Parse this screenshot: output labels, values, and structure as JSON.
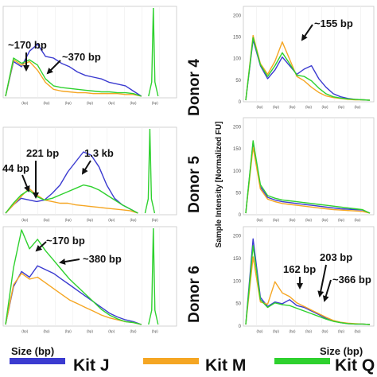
{
  "colors": {
    "kit_j": "#3b3bd0",
    "kit_m": "#f5a623",
    "kit_q": "#2ed12e"
  },
  "donors": [
    "Donor 4",
    "Donor 5",
    "Donor 6"
  ],
  "y_axis_label": "Sample Intensity [Normalized FU]",
  "x_axis_label": "Size (bp)",
  "tick_unit": "(bp)",
  "legend": [
    "Kit J",
    "Kit M",
    "Kit Q"
  ],
  "annotations": {
    "left_top": [
      "~170 bp",
      "~370 bp"
    ],
    "left_mid": [
      "44 bp",
      "221 bp",
      "1.3 kb"
    ],
    "left_bot": [
      "~170 bp",
      "~380 bp"
    ],
    "right_top": [
      "~155 bp"
    ],
    "right_bot": [
      "162 bp",
      "203 bp",
      "~366 bp"
    ]
  },
  "right_y_ticks": [
    "0",
    "50",
    "100",
    "150",
    "200"
  ],
  "chart_data": [
    {
      "type": "line",
      "panel": "left_top",
      "x_index": [
        0,
        1,
        2,
        3,
        4,
        5,
        6,
        7,
        8,
        9,
        10,
        11,
        12,
        13,
        14,
        15,
        16,
        17
      ],
      "series": [
        {
          "name": "Kit J",
          "values": [
            0,
            40,
            34,
            52,
            60,
            46,
            44,
            38,
            34,
            28,
            24,
            22,
            20,
            16,
            14,
            12,
            6,
            0
          ]
        },
        {
          "name": "Kit M",
          "values": [
            0,
            42,
            36,
            40,
            30,
            16,
            8,
            6,
            5,
            4,
            4,
            3,
            3,
            3,
            3,
            2,
            2,
            0
          ]
        },
        {
          "name": "Kit Q",
          "values": [
            0,
            44,
            38,
            42,
            36,
            20,
            12,
            10,
            9,
            8,
            7,
            6,
            5,
            5,
            4,
            4,
            3,
            0
          ]
        }
      ]
    },
    {
      "type": "line",
      "panel": "left_mid",
      "x_index": [
        0,
        1,
        2,
        3,
        4,
        5,
        6,
        7,
        8,
        9,
        10,
        11,
        12,
        13,
        14,
        15,
        16,
        17
      ],
      "series": [
        {
          "name": "Kit J",
          "values": [
            0,
            10,
            18,
            16,
            14,
            16,
            24,
            34,
            50,
            62,
            74,
            70,
            56,
            34,
            18,
            10,
            5,
            0
          ]
        },
        {
          "name": "Kit M",
          "values": [
            0,
            10,
            20,
            30,
            22,
            16,
            14,
            12,
            12,
            10,
            9,
            8,
            7,
            6,
            5,
            4,
            3,
            0
          ]
        },
        {
          "name": "Kit Q",
          "values": [
            0,
            12,
            22,
            28,
            20,
            16,
            18,
            22,
            26,
            30,
            34,
            32,
            28,
            22,
            16,
            10,
            5,
            0
          ]
        }
      ]
    },
    {
      "type": "line",
      "panel": "left_bot",
      "x_index": [
        0,
        1,
        2,
        3,
        4,
        5,
        6,
        7,
        8,
        9,
        10,
        11,
        12,
        13,
        14,
        15,
        16,
        17
      ],
      "series": [
        {
          "name": "Kit J",
          "values": [
            0,
            40,
            56,
            50,
            62,
            58,
            54,
            48,
            42,
            36,
            30,
            24,
            18,
            12,
            8,
            5,
            3,
            0
          ]
        },
        {
          "name": "Kit M",
          "values": [
            0,
            42,
            54,
            48,
            50,
            44,
            38,
            32,
            26,
            22,
            18,
            14,
            10,
            7,
            5,
            3,
            2,
            0
          ]
        },
        {
          "name": "Kit Q",
          "values": [
            0,
            60,
            100,
            80,
            90,
            78,
            68,
            58,
            48,
            40,
            32,
            24,
            16,
            10,
            6,
            3,
            2,
            0
          ]
        }
      ]
    },
    {
      "type": "line",
      "panel": "right_top",
      "x_index": [
        0,
        1,
        2,
        3,
        4,
        5,
        6,
        7,
        8,
        9,
        10,
        11,
        12,
        13,
        14,
        15,
        16,
        17
      ],
      "series": [
        {
          "name": "Kit J",
          "values": [
            0,
            140,
            80,
            50,
            70,
            100,
            80,
            60,
            72,
            80,
            50,
            30,
            15,
            8,
            4,
            2,
            1,
            0
          ]
        },
        {
          "name": "Kit M",
          "values": [
            0,
            150,
            85,
            60,
            90,
            135,
            95,
            55,
            45,
            30,
            18,
            10,
            6,
            4,
            2,
            1,
            1,
            0
          ]
        },
        {
          "name": "Kit Q",
          "values": [
            0,
            145,
            82,
            55,
            80,
            110,
            85,
            58,
            55,
            45,
            28,
            15,
            8,
            5,
            3,
            2,
            1,
            0
          ]
        }
      ]
    },
    {
      "type": "line",
      "panel": "right_mid",
      "x_index": [
        0,
        1,
        2,
        3,
        4,
        5,
        6,
        7,
        8,
        9,
        10,
        11,
        12,
        13,
        14,
        15,
        16,
        17
      ],
      "series": [
        {
          "name": "Kit J",
          "values": [
            0,
            160,
            60,
            36,
            30,
            26,
            24,
            22,
            20,
            18,
            16,
            14,
            12,
            10,
            9,
            8,
            7,
            0
          ]
        },
        {
          "name": "Kit M",
          "values": [
            0,
            150,
            55,
            32,
            26,
            22,
            20,
            18,
            16,
            14,
            12,
            10,
            8,
            7,
            6,
            5,
            4,
            0
          ]
        },
        {
          "name": "Kit Q",
          "values": [
            0,
            165,
            65,
            40,
            34,
            30,
            28,
            26,
            24,
            22,
            20,
            18,
            16,
            14,
            12,
            10,
            8,
            0
          ]
        }
      ]
    },
    {
      "type": "line",
      "panel": "right_bot",
      "x_index": [
        0,
        1,
        2,
        3,
        4,
        5,
        6,
        7,
        8,
        9,
        10,
        11,
        12,
        13,
        14,
        15,
        16,
        17
      ],
      "series": [
        {
          "name": "Kit J",
          "values": [
            0,
            190,
            60,
            40,
            50,
            46,
            55,
            42,
            38,
            30,
            22,
            14,
            8,
            4,
            2,
            1,
            1,
            0
          ]
        },
        {
          "name": "Kit M",
          "values": [
            0,
            150,
            50,
            45,
            95,
            70,
            62,
            48,
            40,
            32,
            24,
            16,
            9,
            5,
            3,
            2,
            1,
            0
          ]
        },
        {
          "name": "Kit Q",
          "values": [
            0,
            175,
            55,
            38,
            48,
            44,
            42,
            36,
            30,
            24,
            18,
            12,
            7,
            4,
            2,
            1,
            1,
            0
          ]
        }
      ]
    }
  ]
}
